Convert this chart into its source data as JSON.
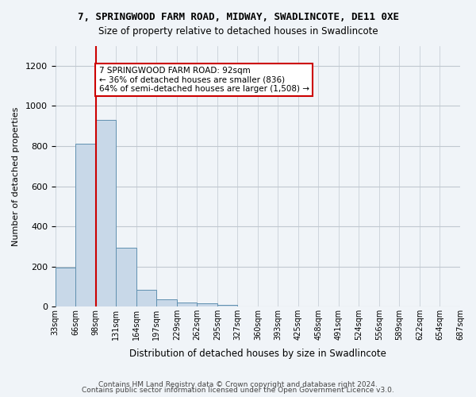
{
  "title": "7, SPRINGWOOD FARM ROAD, MIDWAY, SWADLINCOTE, DE11 0XE",
  "subtitle": "Size of property relative to detached houses in Swadlincote",
  "xlabel": "Distribution of detached houses by size in Swadlincote",
  "ylabel": "Number of detached properties",
  "bar_values": [
    195,
    810,
    930,
    295,
    85,
    35,
    20,
    15,
    10,
    0,
    0,
    0,
    0,
    0,
    0,
    0,
    0,
    0,
    0,
    0
  ],
  "bin_labels": [
    "33sqm",
    "66sqm",
    "98sqm",
    "131sqm",
    "164sqm",
    "197sqm",
    "229sqm",
    "262sqm",
    "295sqm",
    "327sqm",
    "360sqm",
    "393sqm",
    "425sqm",
    "458sqm",
    "491sqm",
    "524sqm",
    "556sqm",
    "589sqm",
    "622sqm",
    "654sqm",
    "687sqm"
  ],
  "bar_color": "#c8d8e8",
  "bar_edge_color": "#6090b0",
  "vline_x": 2,
  "vline_color": "#cc0000",
  "annotation_text": "7 SPRINGWOOD FARM ROAD: 92sqm\n← 36% of detached houses are smaller (836)\n64% of semi-detached houses are larger (1,508) →",
  "annotation_box_color": "#ffffff",
  "annotation_box_edge_color": "#cc0000",
  "ylim": [
    0,
    1300
  ],
  "yticks": [
    0,
    200,
    400,
    600,
    800,
    1000,
    1200
  ],
  "footer1": "Contains HM Land Registry data © Crown copyright and database right 2024.",
  "footer2": "Contains public sector information licensed under the Open Government Licence v3.0.",
  "bg_color": "#f0f4f8",
  "grid_color": "#c0c8d0"
}
